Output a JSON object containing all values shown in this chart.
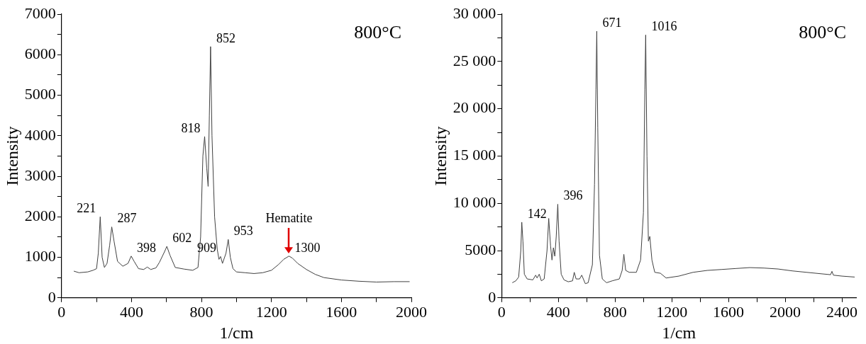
{
  "chart_data": [
    {
      "type": "line",
      "xlabel": "1/cm",
      "ylabel": "Intensity",
      "grid": false,
      "legend": false,
      "marker": "none",
      "line_style": "solid",
      "xlim": [
        0,
        2000
      ],
      "xticks": [
        0,
        {
          "value": 200,
          "label": null
        },
        400,
        {
          "value": 600,
          "label": null
        },
        800,
        {
          "value": 1000,
          "label": null
        },
        1200,
        {
          "value": 1400,
          "label": null
        },
        1600,
        {
          "value": 1800,
          "label": null
        },
        2000
      ],
      "ylim": [
        0,
        7000
      ],
      "yticks": [
        0,
        {
          "value": 500,
          "label": null
        },
        1000,
        {
          "value": 1500,
          "label": null
        },
        2000,
        {
          "value": 2500,
          "label": null
        },
        3000,
        {
          "value": 3500,
          "label": null
        },
        4000,
        {
          "value": 4500,
          "label": null
        },
        5000,
        {
          "value": 5500,
          "label": null
        },
        6000,
        {
          "value": 6500,
          "label": null
        },
        7000
      ],
      "x": [
        70,
        100,
        150,
        180,
        200,
        210,
        221,
        232,
        245,
        260,
        275,
        287,
        300,
        320,
        350,
        380,
        398,
        415,
        440,
        470,
        490,
        510,
        540,
        560,
        590,
        602,
        620,
        650,
        700,
        750,
        780,
        795,
        808,
        818,
        830,
        838,
        845,
        852,
        860,
        875,
        890,
        900,
        909,
        920,
        940,
        953,
        965,
        980,
        1000,
        1050,
        1100,
        1150,
        1200,
        1240,
        1270,
        1300,
        1320,
        1350,
        1400,
        1450,
        1500,
        1600,
        1700,
        1800,
        1900,
        1990
      ],
      "series": [
        {
          "color": "#404040",
          "values": [
            660,
            620,
            640,
            680,
            720,
            1100,
            2000,
            1000,
            750,
            850,
            1300,
            1750,
            1400,
            900,
            780,
            850,
            1030,
            900,
            720,
            700,
            760,
            700,
            740,
            880,
            1150,
            1270,
            1050,
            750,
            710,
            680,
            750,
            1500,
            3500,
            3980,
            3200,
            2750,
            4500,
            6200,
            4000,
            2000,
            1200,
            950,
            1020,
            850,
            1100,
            1440,
            1000,
            720,
            640,
            620,
            600,
            620,
            680,
            820,
            950,
            1030,
            980,
            850,
            700,
            580,
            500,
            440,
            410,
            390,
            400,
            400
          ]
        }
      ],
      "annotations": [
        "800°C",
        {
          "text": "221",
          "x": 221,
          "y": 2000
        },
        {
          "text": "287",
          "x": 287,
          "y": 1750
        },
        {
          "text": "398",
          "x": 398,
          "y": 1030
        },
        {
          "text": "602",
          "x": 602,
          "y": 1270
        },
        {
          "text": "818",
          "x": 818,
          "y": 3980
        },
        {
          "text": "852",
          "x": 852,
          "y": 6200
        },
        {
          "text": "909",
          "x": 909,
          "y": 1020
        },
        {
          "text": "953",
          "x": 953,
          "y": 1440
        },
        {
          "text": "1300",
          "x": 1300,
          "y": 1030
        },
        {
          "text": "Hematite",
          "x": 1300,
          "y": 1030
        }
      ]
    },
    {
      "type": "line",
      "xlabel": "1/cm",
      "ylabel": "Intensity",
      "grid": false,
      "legend": false,
      "marker": "none",
      "line_style": "solid",
      "xlim": [
        0,
        2500
      ],
      "xticks": [
        0,
        {
          "value": 200,
          "label": null
        },
        400,
        {
          "value": 600,
          "label": null
        },
        800,
        {
          "value": 1000,
          "label": null
        },
        1200,
        {
          "value": 1400,
          "label": null
        },
        1600,
        {
          "value": 1800,
          "label": null
        },
        2000,
        {
          "value": 2200,
          "label": null
        },
        2400
      ],
      "ylim": [
        0,
        30000
      ],
      "yticks": [
        0,
        {
          "value": 2500,
          "label": null
        },
        5000,
        {
          "value": 7500,
          "label": null
        },
        {
          "value": 10000,
          "label": "10 000"
        },
        {
          "value": 12500,
          "label": null
        },
        {
          "value": 15000,
          "label": "15 000"
        },
        {
          "value": 17500,
          "label": null
        },
        {
          "value": 20000,
          "label": "20 000"
        },
        {
          "value": 22500,
          "label": null
        },
        {
          "value": 25000,
          "label": "25 000"
        },
        {
          "value": 27500,
          "label": null
        },
        {
          "value": 30000,
          "label": "30 000"
        }
      ],
      "x": [
        75,
        100,
        120,
        135,
        142,
        150,
        160,
        180,
        220,
        240,
        250,
        265,
        280,
        300,
        320,
        332,
        345,
        355,
        365,
        375,
        385,
        396,
        405,
        420,
        440,
        470,
        500,
        512,
        525,
        550,
        565,
        590,
        610,
        640,
        655,
        665,
        671,
        678,
        690,
        710,
        740,
        780,
        830,
        850,
        862,
        875,
        900,
        950,
        980,
        1000,
        1010,
        1016,
        1025,
        1035,
        1045,
        1060,
        1080,
        1120,
        1160,
        1250,
        1350,
        1450,
        1550,
        1650,
        1750,
        1850,
        1950,
        2050,
        2150,
        2250,
        2320,
        2330,
        2340,
        2400,
        2490
      ],
      "series": [
        {
          "color": "#404040",
          "values": [
            1600,
            1800,
            2200,
            5000,
            8000,
            6000,
            2500,
            2000,
            1900,
            2400,
            2100,
            2500,
            1800,
            2000,
            5000,
            8400,
            5500,
            4000,
            5300,
            4400,
            6500,
            9900,
            6000,
            2500,
            1900,
            1700,
            1800,
            2700,
            2000,
            2000,
            2400,
            1500,
            1600,
            3500,
            12000,
            22000,
            28200,
            18000,
            4500,
            2000,
            1600,
            1800,
            2000,
            2900,
            4600,
            2900,
            2700,
            2700,
            4000,
            9000,
            22000,
            27800,
            15000,
            6000,
            6500,
            4000,
            2700,
            2600,
            2100,
            2300,
            2700,
            2900,
            3000,
            3100,
            3200,
            3150,
            3050,
            2850,
            2700,
            2550,
            2450,
            2800,
            2400,
            2300,
            2200
          ]
        }
      ],
      "annotations": [
        "800°C",
        {
          "text": "142",
          "x": 142,
          "y": 8000
        },
        {
          "text": "396",
          "x": 396,
          "y": 9900
        },
        {
          "text": "671",
          "x": 671,
          "y": 28200
        },
        {
          "text": "1016",
          "x": 1016,
          "y": 27800
        }
      ]
    }
  ]
}
